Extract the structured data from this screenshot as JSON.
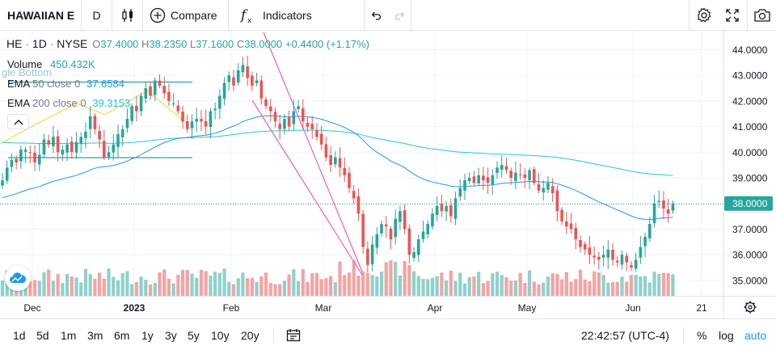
{
  "toolbar": {
    "symbol": "HAWAIIAN E",
    "interval": "D",
    "compare_label": "Compare",
    "indicators_label": "Indicators"
  },
  "legend": {
    "ticker": "HE",
    "sep1": "·",
    "tf": "1D",
    "sep2": "·",
    "exchange": "NYSE",
    "o_label": "O",
    "o_val": "37.4000",
    "h_label": "H",
    "h_val": "38.2350",
    "l_label": "L",
    "l_val": "37.1600",
    "c_label": "C",
    "c_val": "38.0000",
    "change": "+0.4400 (+1.17%)",
    "volume_label": "Volume",
    "volume_val": "450.432K",
    "ema50_label": "EMA",
    "ema50_params": "50 close 0",
    "ema50_val": "37.6584",
    "ema200_label": "EMA",
    "ema200_params": "200 close 0",
    "ema200_val": "39.3153",
    "pattern_label": "gle Bottom"
  },
  "price_axis": {
    "ticks": [
      "44.0000",
      "43.0000",
      "42.0000",
      "41.0000",
      "40.0000",
      "39.0000",
      "38.0000",
      "37.0000",
      "36.0000",
      "35.0000"
    ],
    "last_price": "38.0000"
  },
  "time_axis": {
    "labels": [
      "Dec",
      "2023",
      "Feb",
      "Mar",
      "Apr",
      "May",
      "Jun",
      "21"
    ]
  },
  "ranges": [
    "1d",
    "5d",
    "1m",
    "3m",
    "6m",
    "1y",
    "3y",
    "5y",
    "10y",
    "20y"
  ],
  "status": {
    "clock": "22:42:57 (UTC-4)",
    "pct": "%",
    "log": "log",
    "auto": "auto"
  },
  "colors": {
    "up": "#26a69a",
    "down": "#ef5350",
    "vol_up": "#8fd1c9",
    "vol_down": "#f5a3a3",
    "ema50": "#2196f3",
    "ema200": "#26c6da",
    "pattern": "#ff4da6",
    "accent": "#2196f3"
  },
  "chart_data": {
    "type": "candlestick",
    "ylim": [
      34.6,
      44.8
    ],
    "grid": true,
    "closes": [
      38.9,
      39.4,
      39.7,
      39.6,
      40.1,
      40.1,
      40.0,
      39.6,
      39.9,
      40.5,
      40.3,
      40.6,
      40.0,
      40.1,
      40.3,
      40.0,
      40.4,
      40.6,
      40.8,
      41.4,
      40.9,
      40.5,
      39.8,
      40.0,
      40.3,
      40.7,
      40.9,
      41.3,
      41.8,
      41.6,
      42.2,
      42.5,
      42.2,
      42.8,
      42.6,
      42.3,
      42.0,
      41.9,
      41.6,
      41.2,
      40.9,
      41.2,
      41.3,
      41.2,
      41.0,
      41.6,
      41.7,
      42.2,
      42.7,
      43.0,
      42.6,
      43.2,
      43.4,
      42.9,
      42.6,
      42.8,
      42.1,
      41.8,
      41.6,
      41.2,
      40.9,
      41.3,
      41.0,
      41.6,
      41.8,
      41.2,
      41.0,
      40.9,
      40.6,
      40.3,
      39.8,
      39.5,
      39.8,
      39.4,
      39.1,
      38.6,
      38.2,
      37.6,
      36.3,
      35.6,
      36.4,
      36.8,
      37.2,
      37.1,
      36.6,
      37.4,
      37.7,
      37.0,
      36.0,
      36.1,
      36.6,
      36.9,
      37.2,
      37.6,
      37.9,
      37.7,
      37.9,
      37.5,
      38.2,
      38.6,
      38.9,
      39.0,
      38.8,
      39.1,
      38.9,
      38.8,
      39.1,
      39.4,
      39.5,
      39.3,
      39.0,
      39.2,
      39.1,
      39.0,
      39.3,
      38.8,
      38.5,
      38.6,
      38.8,
      38.4,
      37.7,
      37.3,
      37.1,
      37.0,
      36.6,
      36.3,
      36.2,
      36.0,
      35.9,
      35.8,
      36.0,
      36.2,
      35.8,
      35.7,
      36.0,
      35.7,
      35.5,
      35.8,
      36.3,
      36.7,
      37.2,
      38.0,
      38.1,
      37.8,
      37.6,
      38.0
    ],
    "series": [
      {
        "name": "EMA 50 close 0",
        "last": 37.6584
      },
      {
        "name": "EMA 200 close 0",
        "last": 39.3153
      }
    ]
  }
}
